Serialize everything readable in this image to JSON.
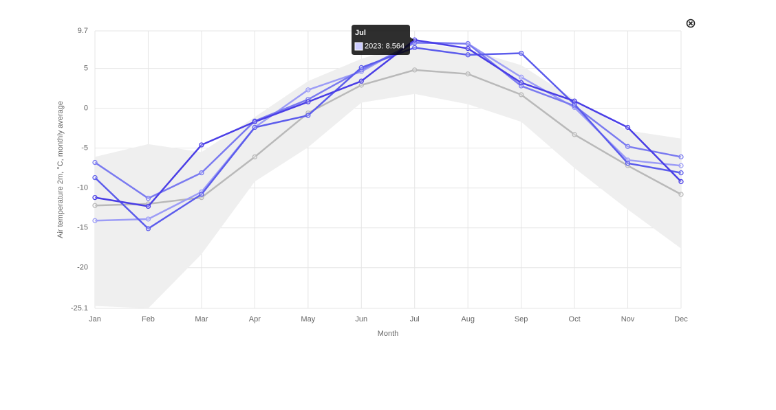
{
  "chart_data": {
    "type": "line",
    "x_label": "Month",
    "y_label": "Air temperature 2m, °C, monthly average",
    "categories": [
      "Jan",
      "Feb",
      "Mar",
      "Apr",
      "May",
      "Jun",
      "Jul",
      "Aug",
      "Sep",
      "Oct",
      "Nov",
      "Dec"
    ],
    "ylim": [
      -25.1,
      9.7
    ],
    "yticks": [
      9.7,
      5,
      0,
      -5,
      -10,
      -15,
      -20,
      -25.1
    ],
    "grid": true,
    "band": {
      "color": "#efefef",
      "upper": [
        -6.1,
        -4.5,
        -5.5,
        -1.1,
        3.4,
        6.2,
        8.2,
        7.4,
        5.4,
        1.1,
        -2.8,
        -3.8
      ],
      "lower": [
        -24.8,
        -25.1,
        -18.3,
        -9.2,
        -4.9,
        0.7,
        1.8,
        0.5,
        -1.7,
        -7.5,
        -12.7,
        -17.6
      ]
    },
    "series": [
      {
        "color": "#b9b9b9",
        "values": [
          -12.2,
          -12.0,
          -11.2,
          -6.1,
          -0.6,
          2.9,
          4.8,
          4.3,
          1.7,
          -3.3,
          -7.2,
          -10.8
        ]
      },
      {
        "color": "#9c9cf6",
        "values": [
          -14.1,
          -13.9,
          -10.5,
          -2.4,
          2.3,
          4.6,
          8.3,
          8.1,
          3.9,
          0.1,
          -6.5,
          -7.2
        ]
      },
      {
        "color": "#7a7af0",
        "values": [
          -6.8,
          -11.3,
          -8.1,
          -1.6,
          1.1,
          4.8,
          8.2,
          8.1,
          2.8,
          0.3,
          -4.8,
          -6.1
        ]
      },
      {
        "color": "#5c5cec",
        "values": [
          -8.7,
          -15.1,
          -10.8,
          -2.4,
          -0.9,
          5.1,
          7.6,
          6.7,
          6.9,
          0.5,
          -6.9,
          -8.1
        ]
      },
      {
        "color": "#4a3ee6",
        "values": [
          -11.2,
          -12.3,
          -4.6,
          -1.7,
          0.8,
          3.4,
          8.564,
          7.5,
          3.2,
          0.9,
          -2.4,
          -9.2
        ]
      }
    ],
    "tooltip": {
      "title": "Jul",
      "label": "2023: 8.564",
      "color": "#ccccff"
    }
  }
}
